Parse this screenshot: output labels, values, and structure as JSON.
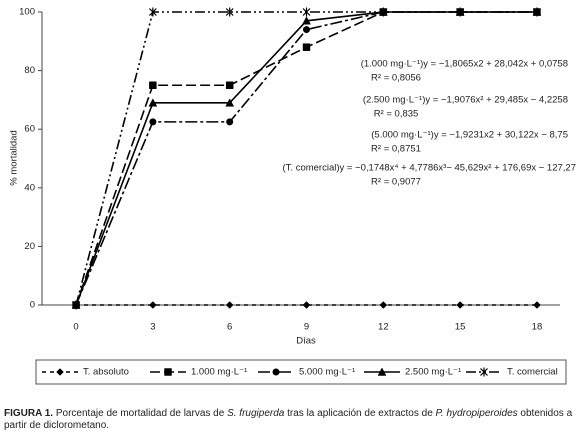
{
  "chart_data": {
    "type": "line",
    "y_label": "% mortalidad",
    "x_label": "Días",
    "x": [
      0,
      3,
      6,
      9,
      12,
      15,
      18
    ],
    "xlim": [
      -1.33,
      18.9
    ],
    "xticks": [
      0,
      3,
      6,
      9,
      12,
      15,
      18
    ],
    "ylim": [
      0,
      100
    ],
    "yticks": [
      0,
      20,
      40,
      60,
      80,
      100
    ],
    "grid": false,
    "series": [
      {
        "name": "T. absoluto",
        "color": "#000000",
        "marker": "diamond",
        "linestyle": "dotted",
        "values": [
          0,
          0,
          0,
          0,
          0,
          0,
          0
        ]
      },
      {
        "name": "1.000 mg·L⁻¹",
        "color": "#000000",
        "marker": "square",
        "linestyle": "dashed",
        "values": [
          0,
          75,
          75,
          88,
          100,
          100,
          100
        ]
      },
      {
        "name": "5.000 mg·L⁻¹",
        "color": "#000000",
        "marker": "circle",
        "linestyle": "dashdot",
        "values": [
          0,
          62.5,
          62.5,
          94,
          100,
          100,
          100
        ]
      },
      {
        "name": "2.500 mg·L⁻¹",
        "color": "#000000",
        "marker": "triangle",
        "linestyle": "solid",
        "values": [
          0,
          69,
          69,
          97,
          100,
          100,
          100
        ]
      },
      {
        "name": "T. comercial",
        "color": "#000000",
        "marker": "asterisk",
        "linestyle": "dashdotdot",
        "values": [
          0,
          100,
          100,
          100,
          100,
          100,
          100
        ]
      }
    ],
    "annotations": [
      "(1.000 mg·L⁻¹)y = −1,8065x2 + 28,042x + 0,0758",
      "R² = 0,8056",
      "(2.500 mg·L⁻¹)y = −1,9076x² + 29,485x − 4,2258",
      "R² = 0,835",
      "(5.000 mg·L⁻¹)y = −1,9231x2 + 30,122x − 8,75",
      "R² = 0,8751",
      "(T. comercial)y = −0,1748x⁴ + 4,7786x³− 45,629x² + 176,69x − 127,27",
      "R² = 0,9077"
    ],
    "caption": [
      "FIGURA 1.",
      " Porcentaje de mortalidad de larvas de ",
      "S. frugiperda",
      " tras la aplicación de extractos de ",
      "P. hydropiperoides",
      " obtenidos a partir de diclorometano."
    ]
  }
}
